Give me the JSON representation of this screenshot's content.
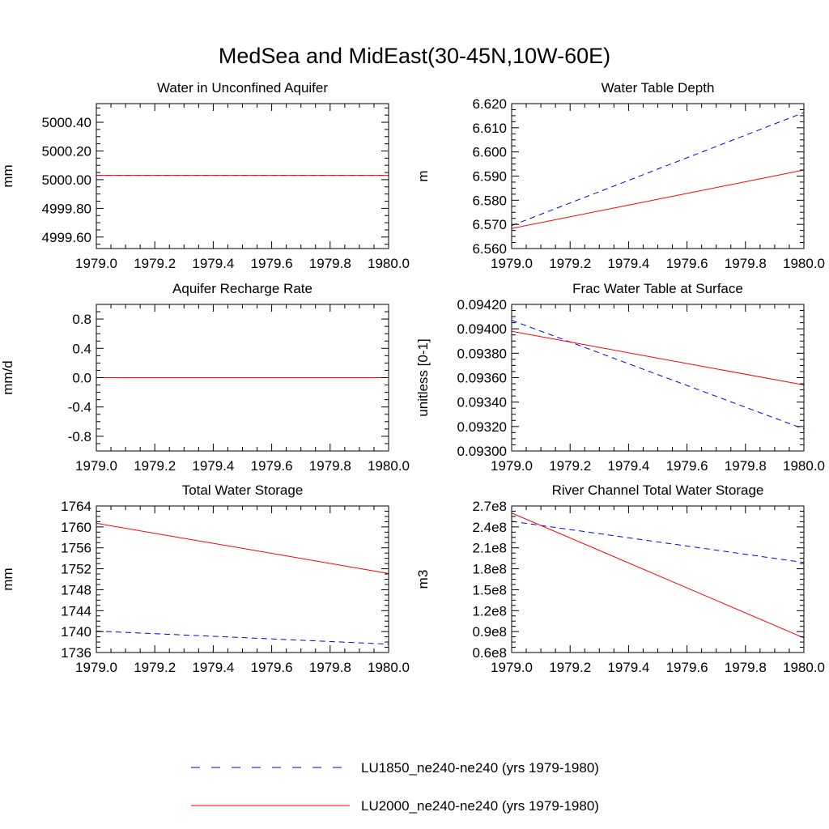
{
  "figure": {
    "title": "MedSea and MidEast(30-45N,10W-60E)"
  },
  "legend": {
    "items": [
      {
        "label": "LU1850_ne240-ne240 (yrs 1979-1980)",
        "color": "#0000ff",
        "dash": "dashed"
      },
      {
        "label": "LU2000_ne240-ne240 (yrs 1979-1980)",
        "color": "#ff0000",
        "dash": "solid"
      }
    ]
  },
  "chart_data": [
    {
      "type": "line",
      "title": "Water in Unconfined Aquifer",
      "xlabel": "",
      "ylabel": "mm",
      "xlim": [
        1979.0,
        1980.0
      ],
      "ylim": [
        4999.52,
        5000.53
      ],
      "x_ticks": [
        1979.0,
        1979.2,
        1979.4,
        1979.6,
        1979.8,
        1980.0
      ],
      "x_tick_labels": [
        "1979.0",
        "1979.2",
        "1979.4",
        "1979.6",
        "1979.8",
        "1980.0"
      ],
      "y_ticks": [
        4999.6,
        4999.8,
        5000.0,
        5000.2,
        5000.4
      ],
      "y_tick_labels": [
        "4999.60",
        "4999.80",
        "5000.00",
        "5000.20",
        "5000.40"
      ],
      "series": [
        {
          "color": "#0000ff",
          "dash": "dashed",
          "x": [
            1979.0,
            1980.0
          ],
          "y": [
            5000.03,
            5000.03
          ]
        },
        {
          "color": "#ff0000",
          "dash": "solid",
          "x": [
            1979.0,
            1980.0
          ],
          "y": [
            5000.03,
            5000.03
          ]
        }
      ]
    },
    {
      "type": "line",
      "title": "Water Table Depth",
      "xlabel": "",
      "ylabel": "m",
      "xlim": [
        1979.0,
        1980.0
      ],
      "ylim": [
        6.56,
        6.62
      ],
      "x_ticks": [
        1979.0,
        1979.2,
        1979.4,
        1979.6,
        1979.8,
        1980.0
      ],
      "x_tick_labels": [
        "1979.0",
        "1979.2",
        "1979.4",
        "1979.6",
        "1979.8",
        "1980.0"
      ],
      "y_ticks": [
        6.56,
        6.57,
        6.58,
        6.59,
        6.6,
        6.61,
        6.62
      ],
      "y_tick_labels": [
        "6.560",
        "6.570",
        "6.580",
        "6.590",
        "6.600",
        "6.610",
        "6.620"
      ],
      "series": [
        {
          "color": "#0000ff",
          "dash": "dashed",
          "x": [
            1979.0,
            1980.0
          ],
          "y": [
            6.5695,
            6.6163
          ]
        },
        {
          "color": "#ff0000",
          "dash": "solid",
          "x": [
            1979.0,
            1980.0
          ],
          "y": [
            6.5683,
            6.5925
          ]
        }
      ]
    },
    {
      "type": "line",
      "title": "Aquifer Recharge Rate",
      "xlabel": "",
      "ylabel": "mm/d",
      "xlim": [
        1979.0,
        1980.0
      ],
      "ylim": [
        -1.0,
        1.0
      ],
      "x_ticks": [
        1979.0,
        1979.2,
        1979.4,
        1979.6,
        1979.8,
        1980.0
      ],
      "x_tick_labels": [
        "1979.0",
        "1979.2",
        "1979.4",
        "1979.6",
        "1979.8",
        "1980.0"
      ],
      "y_ticks": [
        -0.8,
        -0.4,
        0.0,
        0.4,
        0.8
      ],
      "y_tick_labels": [
        "-0.8",
        "-0.4",
        "0.0",
        "0.4",
        "0.8"
      ],
      "series": [
        {
          "color": "#0000ff",
          "dash": "dashed",
          "x": [
            1979.0,
            1980.0
          ],
          "y": [
            0.0,
            0.0
          ]
        },
        {
          "color": "#ff0000",
          "dash": "solid",
          "x": [
            1979.0,
            1980.0
          ],
          "y": [
            0.0,
            0.0
          ]
        }
      ]
    },
    {
      "type": "line",
      "title": "Frac Water Table at Surface",
      "xlabel": "",
      "ylabel": "unitless [0-1]",
      "xlim": [
        1979.0,
        1980.0
      ],
      "ylim": [
        0.093,
        0.0942
      ],
      "x_ticks": [
        1979.0,
        1979.2,
        1979.4,
        1979.6,
        1979.8,
        1980.0
      ],
      "x_tick_labels": [
        "1979.0",
        "1979.2",
        "1979.4",
        "1979.6",
        "1979.8",
        "1980.0"
      ],
      "y_ticks": [
        0.093,
        0.0932,
        0.0934,
        0.0936,
        0.0938,
        0.094,
        0.0942
      ],
      "y_tick_labels": [
        "0.09300",
        "0.09320",
        "0.09340",
        "0.09360",
        "0.09380",
        "0.09400",
        "0.09420"
      ],
      "series": [
        {
          "color": "#0000ff",
          "dash": "dashed",
          "x": [
            1979.0,
            1980.0
          ],
          "y": [
            0.09407,
            0.09318
          ]
        },
        {
          "color": "#ff0000",
          "dash": "solid",
          "x": [
            1979.0,
            1980.0
          ],
          "y": [
            0.09398,
            0.09354
          ]
        }
      ]
    },
    {
      "type": "line",
      "title": "Total Water Storage",
      "xlabel": "",
      "ylabel": "mm",
      "xlim": [
        1979.0,
        1980.0
      ],
      "ylim": [
        1736,
        1764
      ],
      "x_ticks": [
        1979.0,
        1979.2,
        1979.4,
        1979.6,
        1979.8,
        1980.0
      ],
      "x_tick_labels": [
        "1979.0",
        "1979.2",
        "1979.4",
        "1979.6",
        "1979.8",
        "1980.0"
      ],
      "y_ticks": [
        1736,
        1740,
        1744,
        1748,
        1752,
        1756,
        1760,
        1764
      ],
      "y_tick_labels": [
        "1736",
        "1740",
        "1744",
        "1748",
        "1752",
        "1756",
        "1760",
        "1764"
      ],
      "series": [
        {
          "color": "#0000ff",
          "dash": "dashed",
          "x": [
            1979.0,
            1980.0
          ],
          "y": [
            1740.1,
            1737.6
          ]
        },
        {
          "color": "#ff0000",
          "dash": "solid",
          "x": [
            1979.0,
            1980.0
          ],
          "y": [
            1760.7,
            1751.1
          ]
        }
      ]
    },
    {
      "type": "line",
      "title": "River Channel Total Water Storage",
      "xlabel": "",
      "ylabel": "m3",
      "xlim": [
        1979.0,
        1980.0
      ],
      "ylim": [
        60000000,
        270000000
      ],
      "x_ticks": [
        1979.0,
        1979.2,
        1979.4,
        1979.6,
        1979.8,
        1980.0
      ],
      "x_tick_labels": [
        "1979.0",
        "1979.2",
        "1979.4",
        "1979.6",
        "1979.8",
        "1980.0"
      ],
      "y_ticks": [
        60000000,
        90000000,
        120000000,
        150000000,
        180000000,
        210000000,
        240000000,
        270000000
      ],
      "y_tick_labels": [
        "0.6e8",
        "0.9e8",
        "1.2e8",
        "1.5e8",
        "1.8e8",
        "2.1e8",
        "2.4e8",
        "2.7e8"
      ],
      "series": [
        {
          "color": "#0000ff",
          "dash": "dashed",
          "x": [
            1979.0,
            1980.0
          ],
          "y": [
            248000000,
            189000000
          ]
        },
        {
          "color": "#ff0000",
          "dash": "solid",
          "x": [
            1979.0,
            1980.0
          ],
          "y": [
            260000000,
            81000000
          ]
        }
      ]
    }
  ]
}
